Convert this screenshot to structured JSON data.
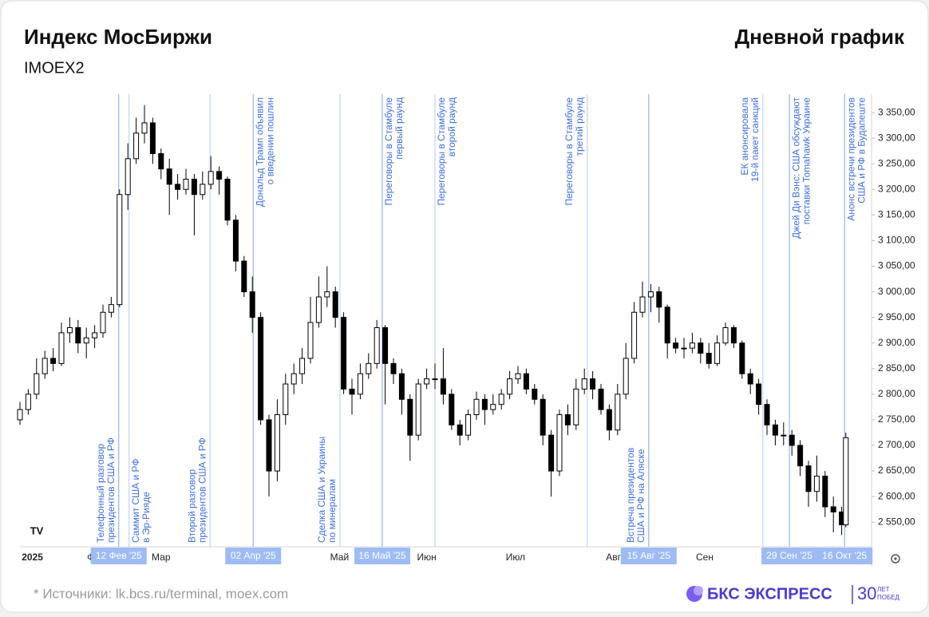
{
  "chart_data": {
    "type": "candlestick",
    "title": "Индекс МосБиржи",
    "subtitle": "IMOEX2",
    "chart_label": "Дневной график",
    "footnote": "*  Источники: lk.bcs.ru/terminal, moex.com",
    "brand": {
      "name": "БКС ЭКСПРЕСС",
      "badge": "30",
      "badge_top": "ЛЕТ",
      "badge_bottom": "ПОБЕД"
    },
    "up_color": "#ffffff",
    "down_color": "#000000",
    "xlim": [
      0,
      205
    ],
    "ylim": [
      2502,
      3386
    ],
    "xticks": [
      {
        "value": 3,
        "label": "2025"
      },
      {
        "value": 18.3,
        "label": "Фев"
      },
      {
        "value": 34,
        "label": "Мар"
      },
      {
        "value": 56,
        "label": "Апр"
      },
      {
        "value": 77,
        "label": "Май"
      },
      {
        "value": 98,
        "label": "Июн"
      },
      {
        "value": 119.4,
        "label": "Июл"
      },
      {
        "value": 143,
        "label": "Авг"
      },
      {
        "value": 165,
        "label": "Сен"
      },
      {
        "value": 186.5,
        "label": "Окт"
      }
    ],
    "yticks": [
      {
        "value": 2550,
        "label": "2 550,00"
      },
      {
        "value": 2600,
        "label": "2 600,00"
      },
      {
        "value": 2650,
        "label": "2 650,00"
      },
      {
        "value": 2700,
        "label": "2 700,00"
      },
      {
        "value": 2750,
        "label": "2 750,00"
      },
      {
        "value": 2800,
        "label": "2 800,00"
      },
      {
        "value": 2850,
        "label": "2 850,00"
      },
      {
        "value": 2900,
        "label": "2 900,00"
      },
      {
        "value": 2950,
        "label": "2 950,00"
      },
      {
        "value": 3000,
        "label": "3 000,00"
      },
      {
        "value": 3050,
        "label": "3 050,00"
      },
      {
        "value": 3100,
        "label": "3 100,00"
      },
      {
        "value": 3150,
        "label": "3 150,00"
      },
      {
        "value": 3200,
        "label": "3 200,00"
      },
      {
        "value": 3250,
        "label": "3 250,00"
      },
      {
        "value": 3300,
        "label": "3 300,00"
      },
      {
        "value": 3350,
        "label": "3 350,00"
      }
    ],
    "x": [
      0,
      2,
      4,
      6,
      8,
      10,
      12,
      14,
      16,
      18,
      20,
      22,
      24,
      26,
      28,
      30,
      32,
      34,
      36,
      38,
      40,
      42,
      44,
      46,
      48,
      50,
      52,
      54,
      56,
      58,
      60,
      62,
      64,
      66,
      68,
      70,
      72,
      74,
      76,
      78,
      80,
      82,
      84,
      86,
      88,
      90,
      92,
      94,
      96,
      98,
      100,
      102,
      104,
      106,
      108,
      110,
      112,
      114,
      116,
      118,
      120,
      122,
      124,
      126,
      128,
      130,
      132,
      134,
      136,
      138,
      140,
      142,
      144,
      146,
      148,
      150,
      152,
      154,
      156,
      158,
      160,
      162,
      164,
      166,
      168,
      170,
      172,
      174,
      176,
      178,
      180,
      182,
      184,
      186,
      188,
      190,
      192,
      194,
      196,
      198,
      199
    ],
    "open": [
      2750,
      2770,
      2800,
      2840,
      2870,
      2860,
      2920,
      2930,
      2900,
      2910,
      2920,
      2960,
      2975,
      3190,
      3260,
      3310,
      3330,
      3270,
      3240,
      3210,
      3200,
      3220,
      3190,
      3210,
      3235,
      3220,
      3140,
      3060,
      3000,
      2950,
      2750,
      2650,
      2760,
      2820,
      2840,
      2870,
      2940,
      2990,
      3000,
      2950,
      2810,
      2800,
      2840,
      2860,
      2930,
      2860,
      2840,
      2790,
      2720,
      2820,
      2830,
      2830,
      2800,
      2740,
      2720,
      2760,
      2790,
      2770,
      2780,
      2800,
      2830,
      2840,
      2810,
      2790,
      2720,
      2650,
      2760,
      2740,
      2810,
      2830,
      2810,
      2770,
      2730,
      2800,
      2870,
      2960,
      2990,
      3000,
      2970,
      2900,
      2890,
      2890,
      2900,
      2880,
      2860,
      2900,
      2930,
      2900,
      2840,
      2820,
      2780,
      2740,
      2720,
      2720,
      2700,
      2660,
      2610,
      2640,
      2580,
      2570,
      2545
    ],
    "high": [
      2785,
      2810,
      2870,
      2885,
      2890,
      2940,
      2950,
      2945,
      2930,
      2935,
      2975,
      2990,
      3200,
      3290,
      3340,
      3365,
      3340,
      3280,
      3260,
      3230,
      3240,
      3230,
      3235,
      3265,
      3245,
      3225,
      3150,
      3070,
      3030,
      2960,
      2760,
      2790,
      2840,
      2860,
      2890,
      2990,
      3030,
      3050,
      3010,
      2960,
      2830,
      2860,
      2880,
      2945,
      2935,
      2870,
      2850,
      2800,
      2830,
      2850,
      2860,
      2890,
      2810,
      2750,
      2770,
      2805,
      2800,
      2800,
      2810,
      2845,
      2855,
      2850,
      2820,
      2800,
      2730,
      2770,
      2780,
      2830,
      2850,
      2845,
      2820,
      2780,
      2820,
      2900,
      2980,
      3020,
      3015,
      3010,
      2975,
      2910,
      2910,
      2920,
      2910,
      2900,
      2915,
      2940,
      2935,
      2905,
      2850,
      2830,
      2790,
      2750,
      2745,
      2730,
      2710,
      2670,
      2680,
      2650,
      2600,
      2580,
      2725
    ],
    "low": [
      2740,
      2760,
      2790,
      2830,
      2845,
      2855,
      2900,
      2880,
      2870,
      2890,
      2910,
      2950,
      2970,
      3160,
      3250,
      3290,
      3250,
      3220,
      3150,
      3180,
      3190,
      3110,
      3180,
      3200,
      3190,
      3130,
      3040,
      2990,
      2920,
      2740,
      2600,
      2630,
      2740,
      2800,
      2820,
      2860,
      2930,
      2970,
      2930,
      2800,
      2760,
      2790,
      2830,
      2850,
      2780,
      2820,
      2760,
      2670,
      2710,
      2810,
      2810,
      2780,
      2730,
      2700,
      2710,
      2750,
      2740,
      2760,
      2770,
      2790,
      2820,
      2800,
      2780,
      2700,
      2600,
      2640,
      2720,
      2730,
      2800,
      2790,
      2760,
      2710,
      2720,
      2790,
      2860,
      2950,
      2960,
      2940,
      2870,
      2880,
      2870,
      2880,
      2860,
      2850,
      2855,
      2895,
      2890,
      2830,
      2800,
      2760,
      2720,
      2700,
      2700,
      2680,
      2640,
      2580,
      2590,
      2560,
      2530,
      2525,
      2540
    ],
    "close": [
      2770,
      2800,
      2840,
      2870,
      2860,
      2920,
      2930,
      2900,
      2910,
      2920,
      2960,
      2975,
      3190,
      3260,
      3310,
      3330,
      3270,
      3240,
      3210,
      3200,
      3220,
      3190,
      3210,
      3235,
      3220,
      3140,
      3060,
      3000,
      2950,
      2750,
      2650,
      2760,
      2820,
      2840,
      2870,
      2940,
      2990,
      3000,
      2950,
      2810,
      2800,
      2840,
      2860,
      2930,
      2860,
      2840,
      2790,
      2720,
      2820,
      2830,
      2830,
      2800,
      2740,
      2720,
      2760,
      2790,
      2770,
      2780,
      2800,
      2830,
      2840,
      2810,
      2790,
      2720,
      2650,
      2760,
      2740,
      2810,
      2830,
      2810,
      2770,
      2730,
      2800,
      2870,
      2960,
      2990,
      3000,
      2970,
      2900,
      2890,
      2890,
      2900,
      2880,
      2860,
      2900,
      2930,
      2900,
      2840,
      2820,
      2780,
      2740,
      2720,
      2720,
      2700,
      2660,
      2610,
      2640,
      2580,
      2570,
      2545,
      2715
    ],
    "events": [
      {
        "x": 23.8,
        "lines": [
          "Телефонный разговор",
          "президентов США и РФ"
        ],
        "date_label": "12 Фев '25"
      },
      {
        "x": 26.3,
        "lines": [
          "Саммит США и РФ",
          "в Эр-Рияде"
        ]
      },
      {
        "x": 45.8,
        "lines": [
          "Второй разговор",
          "президентов США и РФ"
        ]
      },
      {
        "x": 56.2,
        "lines": [
          "Дональд Трамп объявил",
          "о введении пошлин"
        ],
        "date_label": "02 Апр '25"
      },
      {
        "x": 77.1,
        "lines": [
          "Сделка США и Украины",
          "по минералам"
        ]
      },
      {
        "x": 87.3,
        "lines": [
          "Переговоры в Стамбуле",
          "первый раунд"
        ],
        "date_label": "16 Май '25"
      },
      {
        "x": 100,
        "lines": [
          "Переговоры в Стамбуле",
          "второй раунд"
        ]
      },
      {
        "x": 136.7,
        "lines": [
          "Переговоры в Стамбуле",
          "третий раунд"
        ]
      },
      {
        "x": 151.5,
        "lines": [
          "Встреча президентов",
          "США и РФ на Аляске"
        ],
        "date_label": "15 Авг '25"
      },
      {
        "x": 179,
        "lines": [
          "ЕК анонсировала",
          "19-й пакет санкций"
        ]
      },
      {
        "x": 185.4,
        "lines": [
          "Джей Ди Вэнс: США обсуждают",
          "поставки Tomahawk Украине"
        ],
        "date_label": "29 Сен '25"
      },
      {
        "x": 198.7,
        "lines": [
          "Анонс встречи президентов",
          "США и РФ в Будапеште"
        ],
        "date_label": "16 Окт '25"
      }
    ]
  }
}
